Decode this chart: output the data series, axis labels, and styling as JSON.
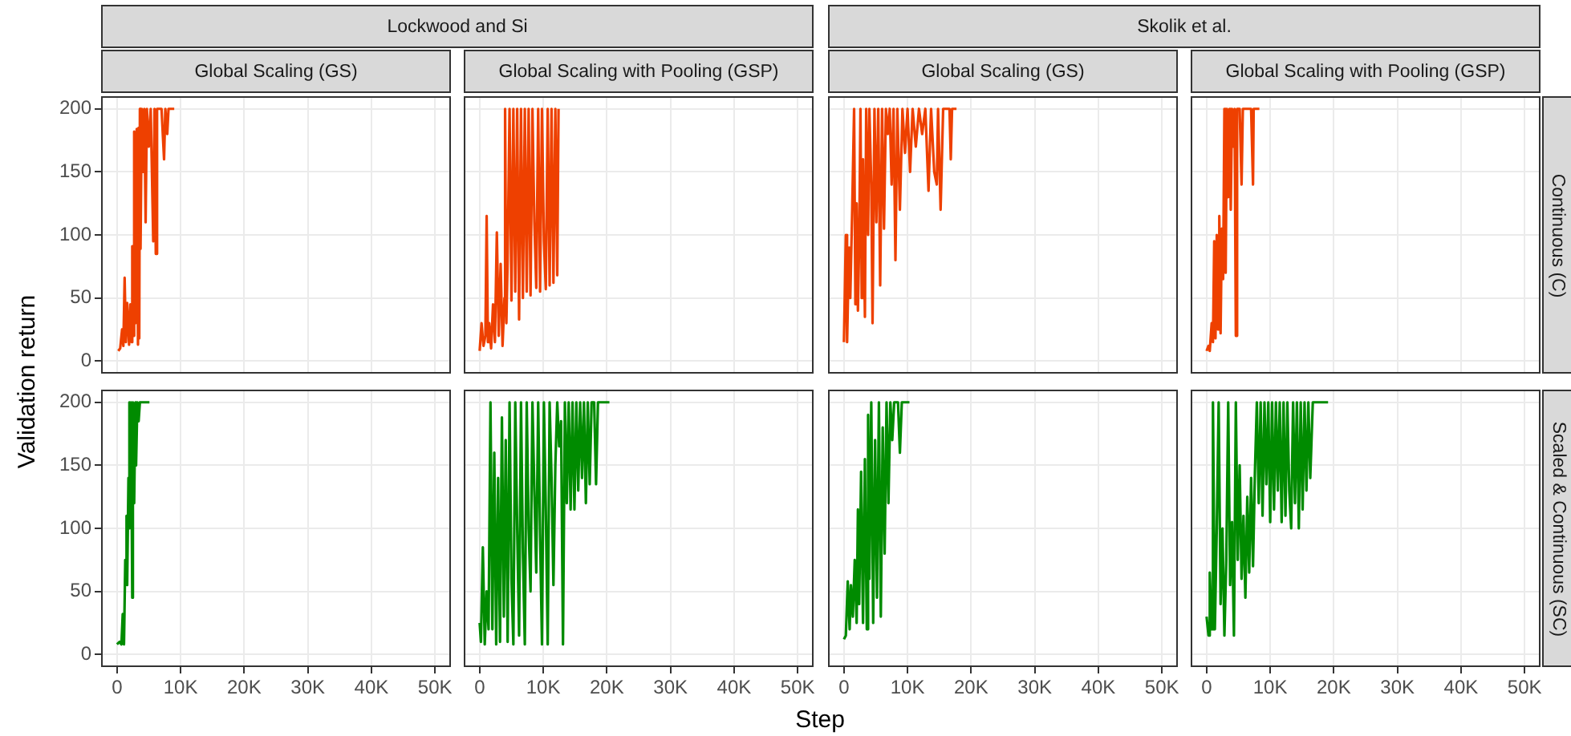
{
  "chart_data": [
    {
      "type": "line",
      "title": "Global Scaling (GS)",
      "tick_labels": "y",
      "grid": true,
      "color": "#ee4000",
      "x": [
        200,
        500,
        800,
        1000,
        1200,
        1400,
        1600,
        1900,
        2100,
        2300,
        2400,
        2600,
        2700,
        2900,
        3100,
        3300,
        3400,
        3500,
        3600,
        3700,
        3900,
        4100,
        4300,
        4500,
        4700,
        5000,
        5300,
        5700,
        5900,
        6100,
        6300,
        7000,
        7400,
        7600,
        7900,
        8100,
        9000
      ],
      "values": [
        8,
        10,
        25,
        12,
        66,
        15,
        46,
        13,
        45,
        15,
        91,
        20,
        182,
        30,
        184,
        13,
        185,
        18,
        200,
        89,
        200,
        150,
        200,
        110,
        200,
        170,
        200,
        95,
        200,
        85,
        200,
        200,
        160,
        200,
        180,
        200,
        200
      ],
      "xlim": [
        -2500,
        52500
      ],
      "ylim": [
        -10,
        210
      ],
      "xticks": [
        0,
        10000,
        20000,
        30000,
        40000,
        50000
      ],
      "yticks": [
        0,
        50,
        100,
        150,
        200
      ]
    },
    {
      "type": "line",
      "title": "Global Scaling with Pooling (GSP)",
      "tick_labels": false,
      "grid": true,
      "color": "#ee4000",
      "x": [
        0,
        300,
        600,
        900,
        1100,
        1300,
        1500,
        1800,
        2100,
        2400,
        2700,
        3000,
        3300,
        3600,
        3900,
        4000,
        4200,
        4400,
        4700,
        5000,
        5300,
        5600,
        5900,
        6200,
        6500,
        6800,
        7100,
        7400,
        7700,
        8000,
        8300,
        8600,
        8900,
        9200,
        9500,
        9800,
        10100,
        10400,
        10700,
        11000,
        11300,
        11600,
        11900,
        12200,
        12400
      ],
      "values": [
        8,
        30,
        12,
        20,
        115,
        15,
        30,
        10,
        45,
        15,
        102,
        20,
        77,
        12,
        50,
        200,
        30,
        80,
        200,
        48,
        200,
        55,
        200,
        33,
        200,
        50,
        200,
        55,
        200,
        52,
        200,
        110,
        58,
        200,
        55,
        200,
        95,
        57,
        200,
        60,
        200,
        62,
        200,
        68,
        200
      ],
      "xlim": [
        -2500,
        52500
      ],
      "ylim": [
        -10,
        210
      ],
      "xticks": [
        0,
        10000,
        20000,
        30000,
        40000,
        50000
      ],
      "yticks": [
        0,
        50,
        100,
        150,
        200
      ]
    },
    {
      "type": "line",
      "title": "Global Scaling (GS)",
      "tick_labels": false,
      "grid": true,
      "color": "#ee4000",
      "x": [
        0,
        300,
        500,
        800,
        1000,
        1300,
        1600,
        1800,
        2000,
        2200,
        2400,
        2600,
        2800,
        3000,
        3300,
        3500,
        3800,
        4000,
        4300,
        4500,
        4800,
        5100,
        5400,
        5700,
        6000,
        6300,
        6600,
        6900,
        7200,
        7500,
        7800,
        8100,
        8400,
        8800,
        9200,
        9600,
        10000,
        10400,
        10800,
        11300,
        11800,
        12300,
        12800,
        13300,
        13700,
        14200,
        14600,
        14800,
        15200,
        15600,
        16600,
        16800,
        17000,
        17700
      ],
      "values": [
        15,
        100,
        15,
        90,
        50,
        120,
        200,
        45,
        125,
        40,
        95,
        200,
        50,
        160,
        35,
        200,
        100,
        200,
        140,
        30,
        200,
        110,
        200,
        60,
        200,
        105,
        200,
        180,
        200,
        140,
        200,
        80,
        200,
        120,
        200,
        165,
        200,
        150,
        200,
        170,
        200,
        180,
        200,
        135,
        200,
        150,
        140,
        200,
        120,
        200,
        200,
        160,
        200,
        200
      ],
      "xlim": [
        -2500,
        52500
      ],
      "ylim": [
        -10,
        210
      ],
      "xticks": [
        0,
        10000,
        20000,
        30000,
        40000,
        50000
      ],
      "yticks": [
        0,
        50,
        100,
        150,
        200
      ]
    },
    {
      "type": "line",
      "title": "Global Scaling with Pooling (GSP)",
      "tick_labels": false,
      "grid": true,
      "color": "#ee4000",
      "x": [
        0,
        300,
        500,
        800,
        1000,
        1200,
        1400,
        1600,
        1800,
        2000,
        2200,
        2400,
        2600,
        2800,
        3000,
        3200,
        3400,
        3600,
        3800,
        4000,
        4200,
        4400,
        4600,
        4800,
        5200,
        5500,
        5700,
        6000,
        7000,
        7300,
        7400,
        8300
      ],
      "values": [
        8,
        12,
        8,
        30,
        15,
        95,
        18,
        100,
        25,
        115,
        22,
        105,
        65,
        200,
        70,
        200,
        130,
        200,
        120,
        200,
        170,
        200,
        20,
        200,
        200,
        140,
        200,
        200,
        200,
        140,
        200,
        200
      ],
      "xlim": [
        -2500,
        52500
      ],
      "ylim": [
        -10,
        210
      ],
      "xticks": [
        0,
        10000,
        20000,
        30000,
        40000,
        50000
      ],
      "yticks": [
        0,
        50,
        100,
        150,
        200
      ]
    },
    {
      "type": "line",
      "grid": true,
      "color": "#008b00",
      "x": [
        0,
        400,
        700,
        900,
        1100,
        1300,
        1500,
        1600,
        1800,
        1900,
        2000,
        2200,
        2400,
        2500,
        2700,
        2900,
        3000,
        3200,
        3400,
        3600,
        5100
      ],
      "values": [
        8,
        10,
        8,
        32,
        8,
        75,
        110,
        55,
        140,
        200,
        100,
        200,
        45,
        200,
        120,
        200,
        150,
        200,
        185,
        200,
        200
      ],
      "xlim": [
        -2500,
        52500
      ],
      "ylim": [
        -10,
        210
      ],
      "xticks": [
        {
          "value": 0,
          "label": "0"
        },
        {
          "value": 10000,
          "label": "10K"
        },
        {
          "value": 20000,
          "label": "20K"
        },
        {
          "value": 30000,
          "label": "30K"
        },
        {
          "value": 40000,
          "label": "40K"
        },
        {
          "value": 50000,
          "label": "50K"
        }
      ],
      "yticks": [
        0,
        50,
        100,
        150,
        200
      ]
    },
    {
      "type": "line",
      "tick_labels": "x",
      "grid": true,
      "color": "#008b00",
      "x": [
        0,
        200,
        500,
        800,
        1100,
        1400,
        1700,
        2000,
        2300,
        2600,
        2900,
        3200,
        3500,
        3800,
        4100,
        4400,
        4700,
        5000,
        5300,
        5600,
        5900,
        6200,
        6500,
        6800,
        7100,
        7400,
        7700,
        8000,
        8300,
        8600,
        8900,
        9200,
        9500,
        9800,
        10100,
        10400,
        10700,
        11000,
        11300,
        11600,
        11900,
        12200,
        12500,
        12800,
        13100,
        13400,
        13700,
        14000,
        14300,
        14600,
        14900,
        15200,
        15500,
        15800,
        16100,
        16400,
        16700,
        17000,
        17300,
        17600,
        18000,
        18300,
        18600,
        20400
      ],
      "values": [
        25,
        10,
        85,
        8,
        50,
        20,
        200,
        20,
        160,
        8,
        140,
        10,
        188,
        30,
        170,
        10,
        200,
        60,
        8,
        200,
        100,
        15,
        200,
        80,
        8,
        200,
        100,
        50,
        200,
        130,
        65,
        200,
        95,
        8,
        200,
        115,
        8,
        200,
        140,
        55,
        150,
        200,
        165,
        185,
        8,
        200,
        120,
        200,
        115,
        200,
        115,
        200,
        130,
        200,
        140,
        200,
        120,
        200,
        135,
        200,
        200,
        135,
        200,
        200
      ],
      "xlim": [
        -2500,
        52500
      ],
      "ylim": [
        -10,
        210
      ],
      "xticks": [
        {
          "value": 0,
          "label": "0"
        },
        {
          "value": 10000,
          "label": "10K"
        },
        {
          "value": 20000,
          "label": "20K"
        },
        {
          "value": 30000,
          "label": "30K"
        },
        {
          "value": 40000,
          "label": "40K"
        },
        {
          "value": 50000,
          "label": "50K"
        }
      ],
      "yticks": [
        0,
        50,
        100,
        150,
        200
      ]
    },
    {
      "type": "line",
      "tick_labels": "x",
      "grid": true,
      "color": "#008b00",
      "x": [
        0,
        300,
        600,
        900,
        1100,
        1400,
        1700,
        2000,
        2200,
        2400,
        2700,
        3000,
        3300,
        3600,
        3800,
        4000,
        4300,
        4600,
        4900,
        5200,
        5500,
        5800,
        6100,
        6400,
        6700,
        7000,
        7300,
        7600,
        7900,
        8500,
        8800,
        9100,
        10300
      ],
      "values": [
        12,
        15,
        58,
        20,
        55,
        30,
        75,
        25,
        115,
        40,
        145,
        25,
        155,
        20,
        190,
        60,
        200,
        25,
        170,
        45,
        200,
        30,
        180,
        80,
        200,
        120,
        200,
        170,
        200,
        200,
        160,
        200,
        200
      ],
      "xlim": [
        -2500,
        52500
      ],
      "ylim": [
        -10,
        210
      ],
      "xticks": [
        {
          "value": 0,
          "label": "0"
        },
        {
          "value": 10000,
          "label": "10K"
        },
        {
          "value": 20000,
          "label": "20K"
        },
        {
          "value": 30000,
          "label": "30K"
        },
        {
          "value": 40000,
          "label": "40K"
        },
        {
          "value": 50000,
          "label": "50K"
        }
      ],
      "yticks": [
        0,
        50,
        100,
        150,
        200
      ]
    },
    {
      "type": "line",
      "tick_labels": "x",
      "grid": true,
      "color": "#008b00",
      "x": [
        0,
        300,
        500,
        800,
        1000,
        1300,
        1600,
        1900,
        2200,
        2500,
        2800,
        3100,
        3400,
        3700,
        4000,
        4300,
        4600,
        4900,
        5200,
        5500,
        5800,
        6100,
        6400,
        6700,
        7000,
        7300,
        7600,
        7900,
        8200,
        8500,
        8800,
        9100,
        9400,
        9700,
        10000,
        10300,
        10600,
        10900,
        11200,
        11500,
        11800,
        12100,
        12400,
        12700,
        13000,
        13300,
        13600,
        13900,
        14200,
        14500,
        14800,
        15100,
        15400,
        15700,
        16000,
        16300,
        16700,
        19100
      ],
      "values": [
        30,
        15,
        65,
        20,
        200,
        20,
        100,
        200,
        40,
        100,
        15,
        75,
        200,
        55,
        105,
        15,
        200,
        75,
        150,
        60,
        110,
        45,
        125,
        65,
        140,
        70,
        145,
        200,
        120,
        200,
        110,
        200,
        135,
        200,
        105,
        200,
        115,
        200,
        130,
        200,
        105,
        200,
        110,
        200,
        130,
        100,
        200,
        120,
        200,
        100,
        200,
        115,
        200,
        130,
        200,
        140,
        200,
        200
      ],
      "xlim": [
        -2500,
        52500
      ],
      "ylim": [
        -10,
        210
      ],
      "xticks": [
        {
          "value": 0,
          "label": "0"
        },
        {
          "value": 10000,
          "label": "10K"
        },
        {
          "value": 20000,
          "label": "20K"
        },
        {
          "value": 30000,
          "label": "30K"
        },
        {
          "value": 40000,
          "label": "40K"
        },
        {
          "value": 50000,
          "label": "50K"
        }
      ],
      "yticks": [
        0,
        50,
        100,
        150,
        200
      ]
    },
    {
      "type": "other",
      "xlabel": "Step",
      "ylabel": "Validation return",
      "annotations": [
        "Lockwood and Si",
        "Skolik et al.",
        "Continuous (C)",
        "Scaled & Continuous (SC)"
      ]
    }
  ]
}
